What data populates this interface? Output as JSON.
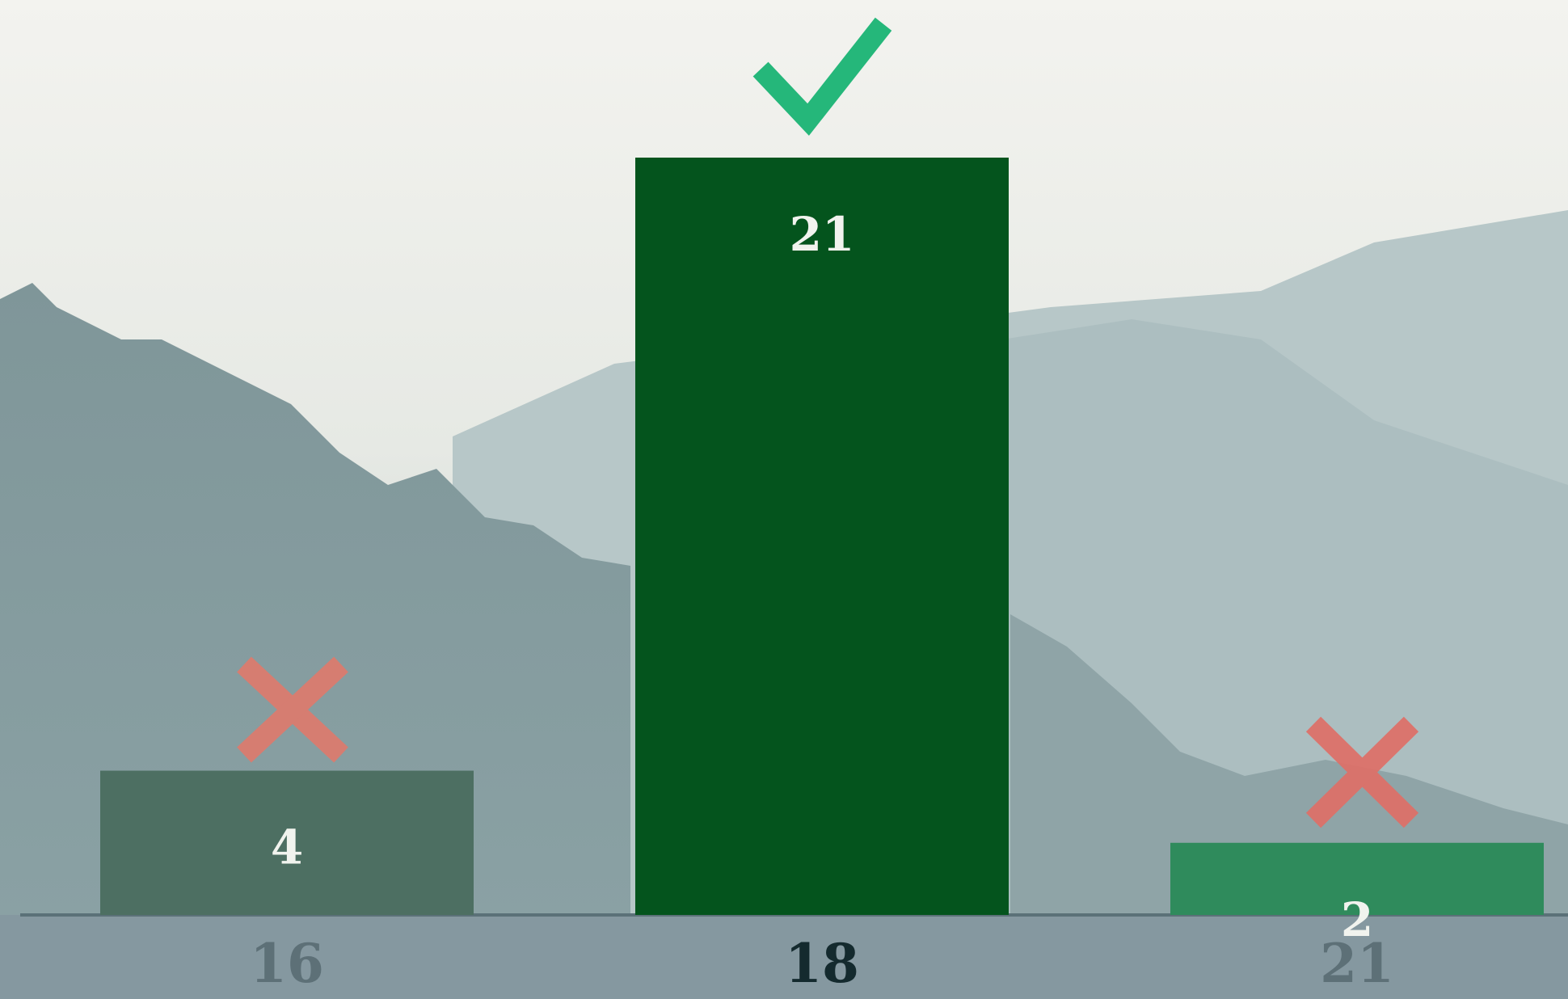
{
  "chart_data": {
    "type": "bar",
    "categories": [
      "16",
      "18",
      "21"
    ],
    "values": [
      4,
      21,
      2
    ],
    "colors": [
      "#4d6f62",
      "#04541d",
      "#2f8b5c"
    ],
    "category_colors": [
      "#5d7077",
      "#142a2e",
      "#5d7077"
    ]
  }
}
